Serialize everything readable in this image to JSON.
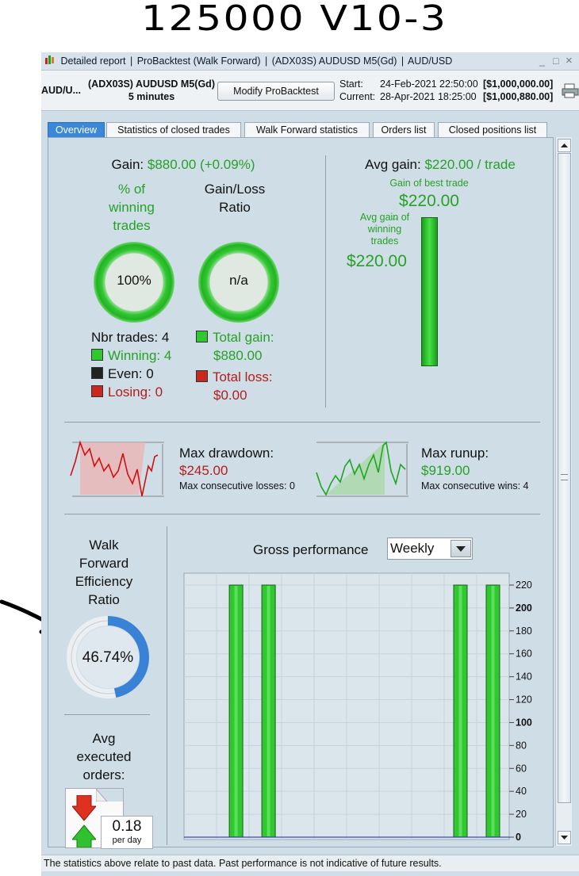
{
  "annotation": {
    "handwritten": "125000   V10-3"
  },
  "window": {
    "title_parts": [
      "Detailed report",
      "ProBacktest (Walk Forward)",
      "(ADX03S) AUDUSD M5(Gd)",
      "AUD/USD"
    ],
    "controls": [
      "_",
      "□",
      "×"
    ]
  },
  "infobar": {
    "instrument_short": "AUD/U...",
    "system_name": "(ADX03S) AUDUSD M5(Gd)",
    "timeframe": "5 minutes",
    "modify_button": "Modify ProBacktest",
    "start_label": "Start:",
    "start_date": "24-Feb-2021 22:50:00",
    "start_value": "[$1,000,000.00]",
    "current_label": "Current:",
    "current_date": "28-Apr-2021 18:25:00",
    "current_value": "[$1,000,880.00]"
  },
  "tabs": [
    "Overview",
    "Statistics of closed trades",
    "Walk Forward statistics",
    "Orders list",
    "Closed positions list"
  ],
  "overview": {
    "gain_label": "Gain:",
    "gain_value": "$880.00 (+0.09%)",
    "pct_winning_label_1": "% of",
    "pct_winning_label_2": "winning",
    "pct_winning_label_3": "trades",
    "pct_winning_value": "100%",
    "pct_winning_fraction": 1.0,
    "gain_loss_label_1": "Gain/Loss",
    "gain_loss_label_2": "Ratio",
    "gain_loss_value": "n/a",
    "nbr_trades_label": "Nbr trades:",
    "nbr_trades": "4",
    "winning_label": "Winning:",
    "winning": "4",
    "even_label": "Even:",
    "even": "0",
    "losing_label": "Losing:",
    "losing": "0",
    "total_gain_label": "Total gain:",
    "total_gain": "$880.00",
    "total_loss_label": "Total loss:",
    "total_loss": "$0.00",
    "avg_gain_label": "Avg gain:",
    "avg_gain_value": "$220.00 / trade",
    "best_trade_label": "Gain of best trade",
    "best_trade_value": "$220.00",
    "avg_win_label_1": "Avg gain of",
    "avg_win_label_2": "winning",
    "avg_win_label_3": "trades",
    "avg_win_value": "$220.00",
    "max_drawdown_label": "Max drawdown:",
    "max_drawdown": "$245.00",
    "max_cons_losses": "Max consecutive losses: 0",
    "max_runup_label": "Max runup:",
    "max_runup": "$919.00",
    "max_cons_wins": "Max consecutive wins: 4",
    "wf_label_1": "Walk",
    "wf_label_2": "Forward",
    "wf_label_3": "Efficiency",
    "wf_label_4": "Ratio",
    "wf_value": "46.74%",
    "wf_fraction": 0.4674,
    "avg_orders_label_1": "Avg",
    "avg_orders_label_2": "executed",
    "avg_orders_label_3": "orders:",
    "avg_orders_value": "0.18",
    "avg_orders_unit": "per day",
    "gross_label": "Gross performance",
    "gross_period": "Weekly"
  },
  "chart_data": {
    "type": "bar",
    "title": "Gross performance",
    "ylim": [
      0,
      220
    ],
    "y_ticks": [
      "220",
      "200",
      "180",
      "160",
      "140",
      "120",
      "100",
      "80",
      "60",
      "40",
      "20",
      "0"
    ],
    "bars": [
      {
        "slot": 0.16,
        "value": 220
      },
      {
        "slot": 0.26,
        "value": 220
      },
      {
        "slot": 0.85,
        "value": 220
      },
      {
        "slot": 0.95,
        "value": 220
      }
    ],
    "grid": true
  },
  "statusbar": {
    "text": "The statistics above relate to past data. Past performance is not indicative of future results."
  },
  "colors": {
    "green": "#27a127",
    "red": "#b31d1d",
    "accent": "#3c88d8",
    "bar": "#2fc92f"
  }
}
